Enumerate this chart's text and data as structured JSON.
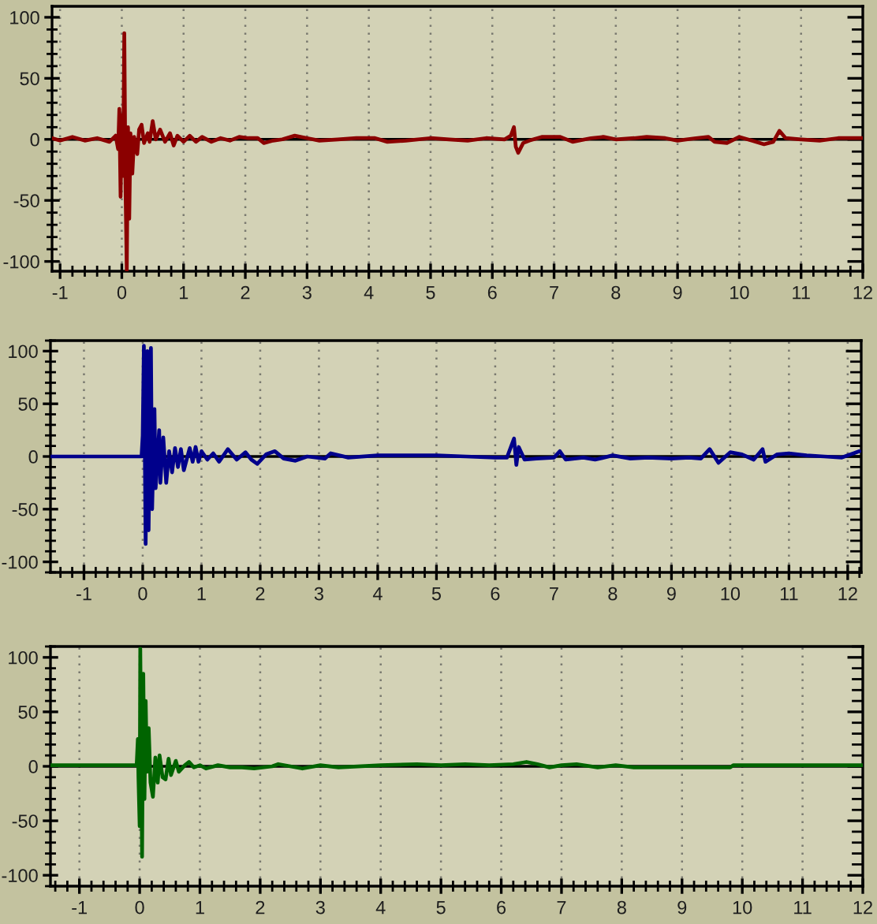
{
  "chart_data": [
    {
      "type": "line",
      "x": [
        -1.13,
        -1.0,
        -0.8,
        -0.6,
        -0.4,
        -0.2,
        -0.1,
        -0.06,
        -0.04,
        -0.02,
        0.0,
        0.02,
        0.04,
        0.06,
        0.08,
        0.1,
        0.12,
        0.14,
        0.17,
        0.2,
        0.25,
        0.28,
        0.32,
        0.36,
        0.42,
        0.45,
        0.5,
        0.55,
        0.62,
        0.7,
        0.78,
        0.84,
        0.9,
        1.0,
        1.1,
        1.2,
        1.3,
        1.45,
        1.6,
        1.75,
        1.9,
        2.05,
        2.2,
        2.3,
        2.45,
        2.6,
        2.8,
        3.0,
        3.2,
        3.5,
        3.8,
        4.1,
        4.3,
        4.6,
        5.0,
        5.3,
        5.6,
        5.9,
        6.2,
        6.3,
        6.35,
        6.38,
        6.42,
        6.5,
        6.6,
        6.8,
        7.1,
        7.3,
        7.6,
        7.8,
        8.0,
        8.3,
        8.5,
        8.8,
        9.0,
        9.3,
        9.5,
        9.6,
        9.8,
        10.0,
        10.2,
        10.4,
        10.55,
        10.65,
        10.75,
        11.0,
        11.3,
        11.6,
        12.0
      ],
      "series": [
        {
          "color": "#8b0000",
          "values": [
            1,
            -1,
            2,
            -1,
            1,
            -2,
            3,
            -8,
            25,
            -47,
            20,
            -30,
            87,
            -40,
            -107,
            10,
            -65,
            5,
            -28,
            2,
            -12,
            8,
            12,
            -3,
            5,
            -2,
            15,
            0,
            8,
            -2,
            5,
            -5,
            3,
            -2,
            3,
            -2,
            2,
            -2,
            1,
            -1,
            2,
            1,
            1,
            -3,
            -1,
            0,
            3,
            1,
            -1,
            0,
            1,
            1,
            -2,
            -1,
            1,
            0,
            -1,
            1,
            0,
            3,
            10,
            -6,
            -11,
            -3,
            -1,
            2,
            2,
            -2,
            1,
            2,
            0,
            1,
            2,
            1,
            -1,
            1,
            2,
            -2,
            -3,
            2,
            -1,
            -4,
            -2,
            7,
            1,
            0,
            -1,
            1,
            1
          ]
        }
      ],
      "xlim": [
        -1.13,
        12.0
      ],
      "ylim": [
        -108,
        109
      ],
      "xticks": [
        -1,
        0,
        1,
        2,
        3,
        4,
        5,
        6,
        7,
        8,
        9,
        10,
        11,
        12
      ],
      "yticks": [
        -100,
        -50,
        0,
        50,
        100
      ],
      "grid": "x",
      "ref_lines": [
        {
          "axis": "y",
          "value": 0,
          "color": "#000000"
        }
      ]
    },
    {
      "type": "line",
      "x": [
        -1.57,
        -1.0,
        -0.5,
        -0.02,
        0.0,
        0.02,
        0.05,
        0.08,
        0.1,
        0.14,
        0.16,
        0.2,
        0.22,
        0.28,
        0.3,
        0.35,
        0.4,
        0.45,
        0.5,
        0.55,
        0.6,
        0.65,
        0.7,
        0.8,
        0.85,
        0.9,
        0.95,
        1.0,
        1.1,
        1.2,
        1.3,
        1.45,
        1.6,
        1.75,
        1.85,
        1.95,
        2.1,
        2.25,
        2.4,
        2.6,
        2.8,
        3.1,
        3.2,
        3.5,
        4.0,
        4.5,
        5.0,
        5.5,
        6.0,
        6.2,
        6.32,
        6.36,
        6.4,
        6.5,
        6.7,
        7.0,
        7.1,
        7.2,
        7.5,
        7.7,
        8.0,
        8.3,
        8.6,
        9.0,
        9.3,
        9.5,
        9.65,
        9.8,
        10.0,
        10.2,
        10.4,
        10.55,
        10.6,
        10.8,
        11.0,
        11.3,
        11.6,
        11.9,
        12.1,
        12.2
      ],
      "series": [
        {
          "color": "#00008b",
          "values": [
            0,
            0,
            0,
            0,
            20,
            105,
            -83,
            100,
            -70,
            103,
            -50,
            45,
            -30,
            25,
            -25,
            18,
            -25,
            5,
            -15,
            8,
            -10,
            7,
            -13,
            8,
            -5,
            9,
            -5,
            5,
            -3,
            3,
            -5,
            7,
            -3,
            4,
            -3,
            -7,
            2,
            5,
            -2,
            -4,
            0,
            -2,
            3,
            -1,
            1,
            1,
            1,
            0,
            -1,
            -1,
            17,
            -8,
            9,
            -3,
            -2,
            -1,
            5,
            -3,
            -1,
            -3,
            1,
            -2,
            -1,
            -2,
            -1,
            -2,
            7,
            -6,
            4,
            2,
            -3,
            7,
            -5,
            2,
            3,
            1,
            0,
            -1,
            3,
            5
          ]
        }
      ],
      "xlim": [
        -1.57,
        12.23
      ],
      "ylim": [
        -110,
        110
      ],
      "xticks": [
        -1,
        0,
        1,
        2,
        3,
        4,
        5,
        6,
        7,
        8,
        9,
        10,
        11,
        12
      ],
      "yticks": [
        -100,
        -50,
        0,
        50,
        100
      ],
      "grid": "x",
      "ref_lines": [
        {
          "axis": "y",
          "value": 0,
          "color": "#000000"
        }
      ]
    },
    {
      "type": "line",
      "x": [
        -1.48,
        -1.0,
        -0.5,
        -0.05,
        -0.03,
        -0.02,
        0.0,
        0.01,
        0.04,
        0.06,
        0.08,
        0.1,
        0.12,
        0.15,
        0.18,
        0.22,
        0.26,
        0.3,
        0.33,
        0.38,
        0.43,
        0.48,
        0.52,
        0.6,
        0.65,
        0.75,
        0.82,
        0.9,
        1.0,
        1.1,
        1.3,
        1.5,
        1.7,
        1.9,
        2.2,
        2.3,
        2.5,
        2.7,
        3.0,
        3.3,
        4.0,
        4.6,
        5.0,
        5.4,
        5.8,
        6.2,
        6.42,
        6.6,
        6.8,
        7.0,
        7.25,
        7.6,
        7.9,
        8.2,
        9.0,
        9.8,
        9.85,
        11.0,
        12.0
      ],
      "series": [
        {
          "color": "#006400",
          "values": [
            1,
            1,
            1,
            1,
            25,
            -10,
            -55,
            108,
            -83,
            85,
            -30,
            60,
            -5,
            35,
            -15,
            -28,
            8,
            -15,
            10,
            -10,
            -12,
            7,
            -8,
            5,
            -5,
            1,
            4,
            -1,
            1,
            -2,
            1,
            -1,
            -1,
            -2,
            0,
            2,
            0,
            -2,
            1,
            -1,
            1,
            2,
            1,
            2,
            1,
            2,
            4,
            2,
            -1,
            1,
            2,
            -1,
            1,
            -1,
            -1,
            -1,
            1,
            1,
            1
          ]
        }
      ],
      "xlim": [
        -1.48,
        12.0
      ],
      "ylim": [
        -110,
        110
      ],
      "xticks": [
        -1,
        0,
        1,
        2,
        3,
        4,
        5,
        6,
        7,
        8,
        9,
        10,
        11,
        12
      ],
      "yticks": [
        -100,
        -50,
        0,
        50,
        100
      ],
      "grid": "x",
      "ref_lines": [
        {
          "axis": "y",
          "value": 0,
          "color": "#000000"
        }
      ]
    }
  ]
}
